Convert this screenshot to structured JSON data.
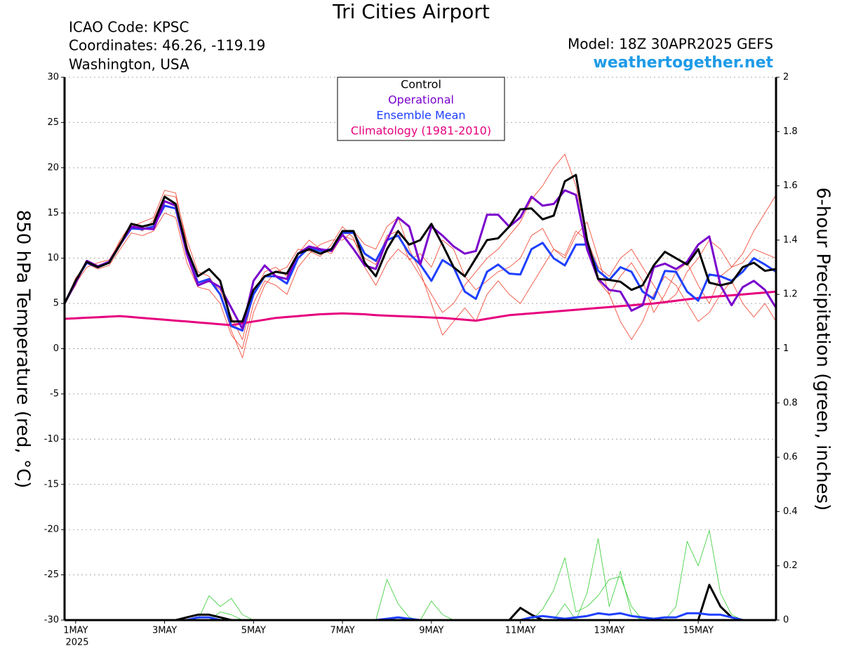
{
  "chart_data": {
    "type": "line",
    "title": "Tri Cities Airport",
    "info": [
      "ICAO Code: KPSC",
      "Coordinates: 46.26, -119.19",
      "Washington, USA"
    ],
    "model": "Model: 18Z 30APR2025 GEFS",
    "source": "weathertogether.net",
    "y_label": "850 hPa Temperature (red, °C)",
    "y2_label": "6-hour Precipitation (green, inches)",
    "x_year_label": "2025",
    "x": [
      -6,
      0,
      6,
      12,
      18,
      24,
      30,
      36,
      42,
      48,
      54,
      60,
      66,
      72,
      78,
      84,
      90,
      96,
      102,
      108,
      114,
      120,
      126,
      132,
      138,
      144,
      150,
      156,
      162,
      168,
      174,
      180,
      186,
      192,
      198,
      204,
      210,
      216,
      222,
      228,
      234,
      240,
      246,
      252,
      258,
      264,
      270,
      276,
      282,
      288,
      294,
      300,
      306,
      312,
      318,
      324,
      330,
      336,
      342,
      348,
      354,
      360,
      366,
      372,
      378
    ],
    "xlim": [
      -6,
      378
    ],
    "xticks": [
      {
        "value": 0,
        "label": "1MAY"
      },
      {
        "value": 48,
        "label": "3MAY"
      },
      {
        "value": 96,
        "label": "5MAY"
      },
      {
        "value": 144,
        "label": "7MAY"
      },
      {
        "value": 192,
        "label": "9MAY"
      },
      {
        "value": 240,
        "label": "11MAY"
      },
      {
        "value": 288,
        "label": "13MAY"
      },
      {
        "value": 336,
        "label": "15MAY"
      }
    ],
    "ylim": [
      -30,
      30
    ],
    "yticks": [
      -30,
      -25,
      -20,
      -15,
      -10,
      -5,
      0,
      5,
      10,
      15,
      20,
      25,
      30
    ],
    "y2lim": [
      0,
      2
    ],
    "y2ticks": [
      0,
      0.2,
      0.4,
      0.6,
      0.8,
      1,
      1.2,
      1.4,
      1.6,
      1.8,
      2
    ],
    "grid": true,
    "legend": "top-center",
    "series": [
      {
        "color": "#f03c28",
        "line_width": 0.8,
        "values": [
          5,
          7,
          9.8,
          9.2,
          9.6,
          12,
          13.8,
          13,
          14.2,
          17,
          16.8,
          12,
          8.5,
          8,
          6,
          2,
          -1,
          4,
          7,
          8.5,
          9,
          11,
          10.8,
          10.2,
          11.5,
          13.5,
          12.2,
          9,
          7,
          9.5,
          11,
          10,
          8,
          6,
          4,
          5,
          7,
          8.5,
          10,
          11,
          12.5,
          14,
          16.5,
          18,
          20,
          21.5,
          18,
          12,
          9,
          8,
          10,
          11,
          9,
          7,
          5,
          6,
          8.5,
          10,
          12,
          11,
          9,
          10.5,
          13,
          15,
          17
        ]
      },
      {
        "color": "#f03c28",
        "line_width": 0.8,
        "values": [
          5,
          7.8,
          9.4,
          8.8,
          9.2,
          11,
          12.8,
          12.5,
          13,
          15,
          14.5,
          9.5,
          6.8,
          6.5,
          5,
          1.5,
          0,
          5,
          7.5,
          7,
          6,
          9,
          10.5,
          11.5,
          12,
          12,
          13,
          11.5,
          11,
          13.5,
          14.5,
          11,
          8.5,
          5,
          1.5,
          3,
          4.5,
          3,
          6,
          7.5,
          6,
          5,
          7,
          9,
          11,
          10,
          12.5,
          14,
          10,
          6,
          3,
          1,
          3,
          6,
          8,
          7,
          5,
          3,
          4,
          6,
          7.5,
          5,
          3.5,
          5,
          3
        ]
      },
      {
        "color": "#f03c28",
        "line_width": 0.8,
        "values": [
          5,
          7.2,
          9,
          9.5,
          9.8,
          11.8,
          13.5,
          14,
          14.5,
          17.5,
          17.2,
          11.5,
          7,
          7.5,
          6.5,
          3.5,
          1,
          6,
          8.5,
          9,
          8,
          10.5,
          12,
          11,
          10.5,
          12.5,
          12,
          10,
          9.3,
          12.5,
          13,
          9.8,
          10.5,
          9,
          12,
          11,
          8,
          6.5,
          7.5,
          8.5,
          9,
          10,
          12.5,
          13.3,
          11,
          10.3,
          13,
          12,
          7.5,
          6,
          8,
          9.5,
          7.5,
          4,
          6,
          8.5,
          9.5,
          7,
          5,
          8,
          9,
          9.5,
          11,
          10.5,
          10
        ]
      },
      {
        "color": "#33cc33",
        "line_width": 0.8,
        "axis": "y2",
        "values": [
          0,
          0,
          0,
          0,
          0,
          0,
          0,
          0,
          0,
          0,
          0,
          0,
          0,
          0.09,
          0.05,
          0.08,
          0.02,
          0,
          0,
          0,
          0,
          0,
          0,
          0,
          0,
          0,
          0,
          0,
          0,
          0.15,
          0.06,
          0.01,
          0,
          0,
          0,
          0,
          0,
          0,
          0,
          0,
          0,
          0,
          0,
          0.04,
          0.11,
          0.23,
          0.03,
          0.05,
          0.09,
          0.15,
          0.16,
          0.05,
          0,
          0,
          0,
          0,
          0,
          0,
          0,
          0,
          0,
          0,
          0,
          0,
          0
        ]
      },
      {
        "color": "#33cc33",
        "line_width": 0.8,
        "axis": "y2",
        "values": [
          0,
          0,
          0,
          0,
          0,
          0,
          0,
          0,
          0,
          0,
          0,
          0,
          0,
          0,
          0.03,
          0.02,
          0,
          0,
          0,
          0,
          0,
          0,
          0,
          0,
          0,
          0,
          0,
          0,
          0,
          0,
          0,
          0,
          0,
          0.07,
          0.02,
          0,
          0,
          0,
          0,
          0,
          0,
          0,
          0,
          0,
          0,
          0.06,
          0,
          0.1,
          0.3,
          0.05,
          0.18,
          0.02,
          0,
          0,
          0,
          0.05,
          0.29,
          0.2,
          0.33,
          0.1,
          0.02,
          0,
          0,
          0,
          0
        ]
      },
      {
        "name": "Climatology (1981-2010)",
        "color": "#e6007e",
        "line_width": 3,
        "values": [
          3.3,
          3.36,
          3.42,
          3.48,
          3.54,
          3.6,
          3.5,
          3.4,
          3.3,
          3.2,
          3.1,
          3,
          2.9,
          2.8,
          2.7,
          2.6,
          2.8,
          3,
          3.2,
          3.4,
          3.5,
          3.6,
          3.7,
          3.8,
          3.85,
          3.9,
          3.85,
          3.8,
          3.7,
          3.65,
          3.6,
          3.55,
          3.5,
          3.45,
          3.4,
          3.3,
          3.2,
          3.1,
          3.3,
          3.5,
          3.7,
          3.8,
          3.9,
          4,
          4.1,
          4.2,
          4.3,
          4.4,
          4.5,
          4.6,
          4.7,
          4.8,
          4.9,
          5,
          5.15,
          5.3,
          5.45,
          5.6,
          5.7,
          5.8,
          5.9,
          6,
          6.1,
          6.2,
          6.3
        ]
      },
      {
        "name": "Ensemble Mean",
        "color": "#2040ff",
        "line_width": 3,
        "values": [
          5,
          7.5,
          9.5,
          9,
          9.5,
          11.5,
          13.3,
          13.2,
          13.5,
          15.8,
          15.5,
          10.5,
          7.3,
          7.7,
          6,
          2.5,
          2,
          6,
          8,
          8,
          7.2,
          10,
          11.2,
          10.8,
          11,
          12.8,
          12.8,
          10.5,
          9.7,
          12,
          12.5,
          10.5,
          9.3,
          7.5,
          9.8,
          9,
          6.3,
          5.5,
          8.5,
          9.3,
          8.3,
          8.2,
          11,
          11.7,
          10,
          9.2,
          11.5,
          11.5,
          8.6,
          7.6,
          9,
          8.5,
          6.3,
          5.5,
          8.6,
          8.5,
          6.3,
          5.3,
          8.2,
          8,
          7.5,
          8.5,
          10,
          9.3,
          8.5
        ]
      },
      {
        "name": "Operational",
        "color": "#7a00cc",
        "line_width": 3,
        "values": [
          5,
          7.3,
          9.7,
          9.1,
          9.6,
          11.5,
          13.5,
          13.3,
          13.2,
          16.3,
          15.8,
          10.5,
          7,
          7.5,
          6.8,
          4.5,
          2.2,
          7.5,
          9.2,
          8,
          7.7,
          10.5,
          11.3,
          11,
          10.8,
          12.6,
          11,
          9.2,
          8.8,
          12,
          14.5,
          13.5,
          9.3,
          13.5,
          12.5,
          11.3,
          10.5,
          10.8,
          14.8,
          14.8,
          13.5,
          14.5,
          16.8,
          15.8,
          16,
          17.5,
          17,
          11,
          7.7,
          6.5,
          6.3,
          4.2,
          4.8,
          9,
          9.4,
          8.8,
          9.6,
          11.5,
          12.4,
          7,
          4.8,
          6.8,
          7.5,
          6.5,
          4.5
        ]
      },
      {
        "name": "Control",
        "color": "#000000",
        "line_width": 3,
        "values": [
          5,
          7.5,
          9.6,
          9,
          9.5,
          11.5,
          13.8,
          13.5,
          13.8,
          16.8,
          16,
          11,
          8,
          8.8,
          7.5,
          3,
          3,
          6.5,
          8,
          8.5,
          8.3,
          10.5,
          11,
          10.5,
          11,
          13,
          13,
          9.5,
          8,
          11,
          13,
          11.5,
          12,
          13.8,
          11.5,
          9,
          8,
          10,
          12,
          12.2,
          13.5,
          15.4,
          15.5,
          14.3,
          14.7,
          18.5,
          19.2,
          12,
          7.7,
          7.6,
          7.4,
          6.5,
          7,
          9.2,
          10.7,
          10,
          9.3,
          11,
          7.3,
          7,
          7.3,
          9,
          9.5,
          8.6,
          8.8
        ]
      },
      {
        "color": "#000000",
        "line_width": 3,
        "axis": "y2",
        "values": [
          0,
          0,
          0,
          0,
          0,
          0,
          0,
          0,
          0,
          0,
          0,
          0.01,
          0.02,
          0.02,
          0.01,
          0,
          0,
          0,
          0,
          0,
          0,
          0,
          0,
          0,
          0,
          0,
          0,
          0,
          0,
          0,
          0,
          0,
          0,
          0,
          0,
          0,
          0,
          0,
          0,
          0,
          0,
          0.045,
          0.02,
          0,
          0,
          0,
          0,
          0,
          0,
          0,
          0,
          0,
          0,
          0,
          0,
          0,
          0,
          0,
          0.13,
          0.05,
          0.01,
          0,
          0,
          0,
          0
        ]
      },
      {
        "color": "#2040ff",
        "line_width": 3,
        "axis": "y2",
        "values": [
          0,
          0,
          0,
          0,
          0,
          0,
          0,
          0,
          0,
          0,
          0,
          0,
          0.01,
          0.01,
          0,
          0,
          0,
          0,
          0,
          0,
          0,
          0,
          0,
          0,
          0,
          0,
          0,
          0,
          0,
          0.005,
          0.01,
          0.005,
          0,
          0,
          0,
          0,
          0,
          0,
          0,
          0,
          0,
          0,
          0.01,
          0.015,
          0.01,
          0.005,
          0.01,
          0.015,
          0.025,
          0.02,
          0.025,
          0.015,
          0.01,
          0.005,
          0.01,
          0.01,
          0.025,
          0.025,
          0.02,
          0.02,
          0.01,
          0,
          0,
          0,
          0
        ]
      }
    ]
  }
}
